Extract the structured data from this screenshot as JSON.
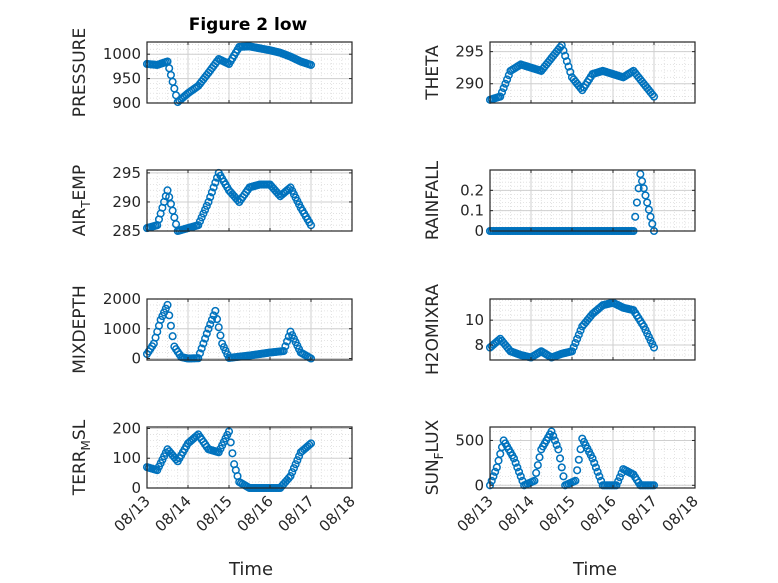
{
  "figure": {
    "title": "Figure 2 low"
  },
  "chart_data": [
    {
      "type": "scatter",
      "ylabel": "PRESSURE",
      "ylim": [
        900,
        1025
      ],
      "yticks": [
        900,
        950,
        1000
      ],
      "ytick_labels": [
        "900",
        "950",
        "1000"
      ],
      "x": [
        "2017-08-13 00:00",
        "2017-08-13 06:00",
        "2017-08-13 12:00",
        "2017-08-13 18:00",
        "2017-08-14 00:00",
        "2017-08-14 06:00",
        "2017-08-14 12:00",
        "2017-08-14 18:00",
        "2017-08-15 00:00",
        "2017-08-15 06:00",
        "2017-08-15 12:00",
        "2017-08-15 18:00",
        "2017-08-16 00:00",
        "2017-08-16 06:00",
        "2017-08-16 12:00",
        "2017-08-16 18:00",
        "2017-08-17 00:00"
      ],
      "values": [
        980,
        978,
        985,
        902,
        920,
        935,
        962,
        990,
        980,
        1015,
        1016,
        1012,
        1008,
        1003,
        995,
        985,
        978
      ],
      "grid": true
    },
    {
      "type": "scatter",
      "ylabel": "THETA",
      "ylim": [
        287,
        296.5
      ],
      "yticks": [
        290,
        295
      ],
      "ytick_labels": [
        "290",
        "295"
      ],
      "x": [
        "2017-08-13 00:00",
        "2017-08-13 06:00",
        "2017-08-13 12:00",
        "2017-08-13 18:00",
        "2017-08-14 00:00",
        "2017-08-14 06:00",
        "2017-08-14 12:00",
        "2017-08-14 18:00",
        "2017-08-15 00:00",
        "2017-08-15 06:00",
        "2017-08-15 12:00",
        "2017-08-15 18:00",
        "2017-08-16 00:00",
        "2017-08-16 06:00",
        "2017-08-16 12:00",
        "2017-08-16 18:00",
        "2017-08-17 00:00"
      ],
      "values": [
        287.5,
        288,
        292,
        293,
        292.5,
        292,
        294,
        296,
        291,
        289,
        291.5,
        292,
        291.5,
        291,
        292,
        290,
        288
      ],
      "grid": true
    },
    {
      "type": "scatter",
      "ylabel": "AIR_TEMP",
      "ylim": [
        285,
        295.5
      ],
      "yticks": [
        285,
        290,
        295
      ],
      "ytick_labels": [
        "285",
        "290",
        "295"
      ],
      "x": [
        "2017-08-13 00:00",
        "2017-08-13 06:00",
        "2017-08-13 12:00",
        "2017-08-13 18:00",
        "2017-08-14 00:00",
        "2017-08-14 06:00",
        "2017-08-14 12:00",
        "2017-08-14 18:00",
        "2017-08-15 00:00",
        "2017-08-15 06:00",
        "2017-08-15 12:00",
        "2017-08-15 18:00",
        "2017-08-16 00:00",
        "2017-08-16 06:00",
        "2017-08-16 12:00",
        "2017-08-16 18:00",
        "2017-08-17 00:00"
      ],
      "values": [
        285.5,
        286,
        292,
        285,
        285.5,
        286,
        290,
        295,
        292,
        290,
        292.5,
        293,
        293,
        291,
        292.5,
        289,
        286
      ],
      "grid": true
    },
    {
      "type": "scatter",
      "ylabel": "RAINFALL",
      "ylim": [
        0,
        0.3
      ],
      "yticks": [
        0,
        0.1,
        0.2
      ],
      "ytick_labels": [
        "0",
        "0.1",
        "0.2"
      ],
      "x": [
        "2017-08-13 00:00",
        "2017-08-13 12:00",
        "2017-08-14 00:00",
        "2017-08-14 12:00",
        "2017-08-15 00:00",
        "2017-08-15 12:00",
        "2017-08-16 00:00",
        "2017-08-16 12:00",
        "2017-08-16 16:00",
        "2017-08-17 00:00"
      ],
      "values": [
        0,
        0,
        0,
        0,
        0,
        0,
        0,
        0,
        0.28,
        0
      ],
      "grid": true
    },
    {
      "type": "scatter",
      "ylabel": "MIXDEPTH",
      "ylim": [
        -50,
        2000
      ],
      "yticks": [
        0,
        1000,
        2000
      ],
      "ytick_labels": [
        "0",
        "1000",
        "2000"
      ],
      "x": [
        "2017-08-13 00:00",
        "2017-08-13 04:00",
        "2017-08-13 08:00",
        "2017-08-13 12:00",
        "2017-08-13 16:00",
        "2017-08-13 20:00",
        "2017-08-14 00:00",
        "2017-08-14 06:00",
        "2017-08-14 12:00",
        "2017-08-14 16:00",
        "2017-08-14 20:00",
        "2017-08-15 00:00",
        "2017-08-15 12:00",
        "2017-08-16 00:00",
        "2017-08-16 08:00",
        "2017-08-16 12:00",
        "2017-08-16 18:00",
        "2017-08-17 00:00"
      ],
      "values": [
        150,
        500,
        1300,
        1800,
        400,
        50,
        0,
        10,
        1000,
        1600,
        500,
        20,
        100,
        200,
        250,
        900,
        200,
        0
      ],
      "grid": true
    },
    {
      "type": "scatter",
      "ylabel": "H2OMIXRA",
      "ylim": [
        6.8,
        11.7
      ],
      "yticks": [
        8,
        10
      ],
      "ytick_labels": [
        "8",
        "10"
      ],
      "x": [
        "2017-08-13 00:00",
        "2017-08-13 06:00",
        "2017-08-13 12:00",
        "2017-08-13 18:00",
        "2017-08-14 00:00",
        "2017-08-14 06:00",
        "2017-08-14 12:00",
        "2017-08-14 18:00",
        "2017-08-15 00:00",
        "2017-08-15 06:00",
        "2017-08-15 12:00",
        "2017-08-15 18:00",
        "2017-08-16 00:00",
        "2017-08-16 06:00",
        "2017-08-16 12:00",
        "2017-08-16 18:00",
        "2017-08-17 00:00"
      ],
      "values": [
        7.8,
        8.5,
        7.5,
        7.2,
        7.0,
        7.5,
        7.0,
        7.3,
        7.5,
        9.5,
        10.5,
        11.2,
        11.4,
        11.0,
        10.8,
        9.5,
        7.8
      ],
      "grid": true
    },
    {
      "type": "scatter",
      "ylabel": "TERR_MSL",
      "ylim": [
        0,
        205
      ],
      "yticks": [
        0,
        100,
        200
      ],
      "ytick_labels": [
        "0",
        "100",
        "200"
      ],
      "x": [
        "2017-08-13 00:00",
        "2017-08-13 06:00",
        "2017-08-13 12:00",
        "2017-08-13 18:00",
        "2017-08-14 00:00",
        "2017-08-14 06:00",
        "2017-08-14 12:00",
        "2017-08-14 18:00",
        "2017-08-15 00:00",
        "2017-08-15 03:00",
        "2017-08-15 06:00",
        "2017-08-15 12:00",
        "2017-08-16 00:00",
        "2017-08-16 06:00",
        "2017-08-16 12:00",
        "2017-08-16 18:00",
        "2017-08-17 00:00"
      ],
      "values": [
        70,
        60,
        130,
        90,
        150,
        180,
        130,
        120,
        190,
        80,
        20,
        0,
        0,
        0,
        40,
        120,
        150
      ],
      "grid": true
    },
    {
      "type": "scatter",
      "ylabel": "SUN_FLUX",
      "ylim": [
        -30,
        650
      ],
      "yticks": [
        0,
        500
      ],
      "ytick_labels": [
        "0",
        "500"
      ],
      "x": [
        "2017-08-13 00:00",
        "2017-08-13 04:00",
        "2017-08-13 08:00",
        "2017-08-13 14:00",
        "2017-08-13 20:00",
        "2017-08-14 02:00",
        "2017-08-14 06:00",
        "2017-08-14 12:00",
        "2017-08-14 16:00",
        "2017-08-14 20:00",
        "2017-08-15 02:00",
        "2017-08-15 06:00",
        "2017-08-15 12:00",
        "2017-08-15 18:00",
        "2017-08-16 02:00",
        "2017-08-16 06:00",
        "2017-08-16 12:00",
        "2017-08-16 16:00",
        "2017-08-17 00:00"
      ],
      "values": [
        0,
        200,
        500,
        300,
        0,
        50,
        400,
        600,
        400,
        0,
        50,
        520,
        300,
        0,
        0,
        180,
        120,
        0,
        0
      ],
      "grid": true
    }
  ],
  "x_axis": {
    "label": "Time",
    "ticks": [
      "08/13",
      "08/14",
      "08/15",
      "08/16",
      "08/17",
      "08/18"
    ]
  },
  "colors": {
    "marker": "#0072BD",
    "axis": "#262626",
    "grid": "#dcdcdc"
  }
}
